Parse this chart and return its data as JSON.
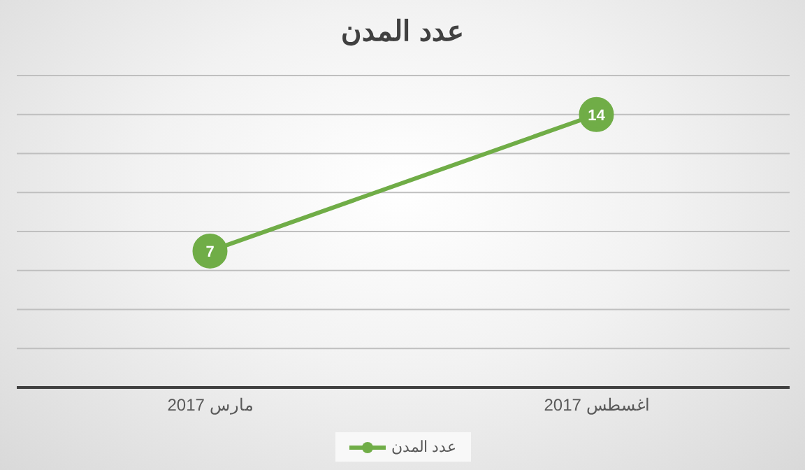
{
  "chart_data": {
    "type": "line",
    "title": "عدد المدن",
    "categories": [
      "مارس 2017",
      "اغسطس 2017"
    ],
    "series": [
      {
        "name": "عدد المدن",
        "color": "#70ad47",
        "values": [
          7,
          14
        ]
      }
    ],
    "ylim": [
      0,
      16
    ],
    "yticks": [
      {
        "value": 0,
        "label": null
      },
      {
        "value": 2,
        "label": null
      },
      {
        "value": 4,
        "label": null
      },
      {
        "value": 6,
        "label": null
      },
      {
        "value": 8,
        "label": null
      },
      {
        "value": 10,
        "label": null
      },
      {
        "value": 12,
        "label": null
      },
      {
        "value": 14,
        "label": null
      },
      {
        "value": 16,
        "label": null
      }
    ],
    "tick_labels": "x",
    "grid": "y",
    "legend": "bottom",
    "marker": "circle",
    "line_style": "solid",
    "data_labels": true
  }
}
